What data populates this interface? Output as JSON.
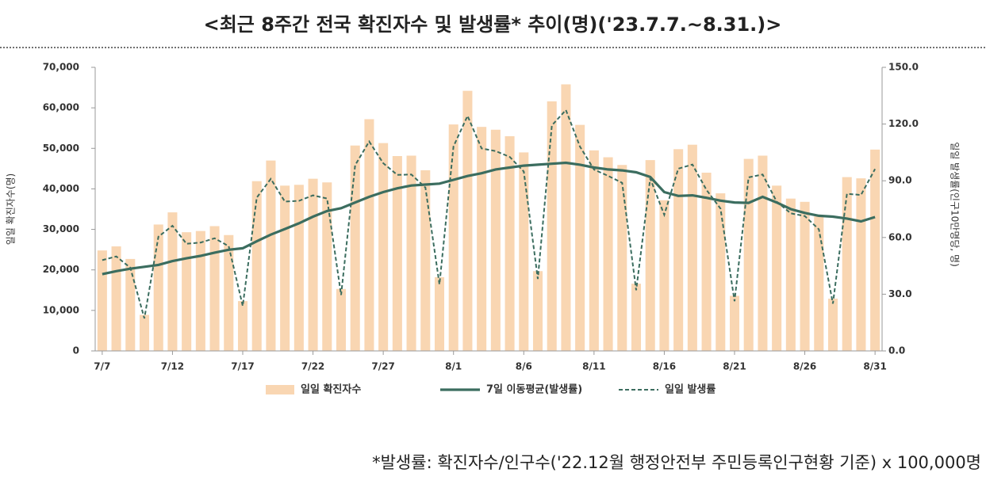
{
  "chart_data": {
    "type": "bar",
    "title": "<최근 8주간 전국 확진자수 및 발생률* 추이(명)('23.7.7.~8.31.)>",
    "footnote": "*발생률: 확진자수/인구수('22.12월 행정안전부 주민등록인구현황 기준) x 100,000명",
    "y_label": "일일 확진자수(명)",
    "y2_label": "일일 발생률(인구10만명당, 명)",
    "categories": [
      "7/7",
      null,
      null,
      null,
      null,
      "7/12",
      null,
      null,
      null,
      null,
      "7/17",
      null,
      null,
      null,
      null,
      "7/22",
      null,
      null,
      null,
      null,
      "7/27",
      null,
      null,
      null,
      null,
      "8/1",
      null,
      null,
      null,
      null,
      "8/6",
      null,
      null,
      null,
      null,
      "8/11",
      null,
      null,
      null,
      null,
      "8/16",
      null,
      null,
      null,
      null,
      "8/21",
      null,
      null,
      null,
      null,
      "8/26",
      null,
      null,
      null,
      null,
      "8/31"
    ],
    "ylim": [
      0,
      70000
    ],
    "yticks": [
      0,
      {
        "value": 10000,
        "label": "10,000"
      },
      {
        "value": 20000,
        "label": "20,000"
      },
      {
        "value": 30000,
        "label": "30,000"
      },
      {
        "value": 40000,
        "label": "40,000"
      },
      {
        "value": 50000,
        "label": "50,000"
      },
      {
        "value": 60000,
        "label": "60,000"
      },
      {
        "value": 70000,
        "label": "70,000"
      }
    ],
    "y2lim": [
      0,
      150
    ],
    "y2ticks": [
      {
        "value": 0,
        "label": "0.0"
      },
      {
        "value": 30,
        "label": "30.0"
      },
      {
        "value": 60,
        "label": "60.0"
      },
      {
        "value": 90,
        "label": "90.0"
      },
      {
        "value": 120,
        "label": "120.0"
      },
      {
        "value": 150,
        "label": "150.0"
      }
    ],
    "series": [
      {
        "name": "일일 확진자수",
        "type": "bar",
        "color": "#f9d6b2",
        "values": [
          24800,
          25800,
          22700,
          8900,
          31200,
          34200,
          29300,
          29600,
          30800,
          28600,
          12300,
          41900,
          47000,
          40800,
          41000,
          42500,
          41600,
          15300,
          50700,
          57200,
          51300,
          48100,
          48200,
          44600,
          18200,
          55900,
          64200,
          55300,
          54600,
          53000,
          49000,
          19700,
          61600,
          65800,
          55800,
          49500,
          47800,
          45900,
          16600,
          47100,
          37200,
          49800,
          50900,
          44000,
          38900,
          13600,
          47400,
          48200,
          40800,
          37600,
          36800,
          33200,
          12900,
          42900,
          42600,
          49700
        ]
      },
      {
        "name": "7일 이동평균(발생률)",
        "type": "line",
        "axis": "y2",
        "line_style": "solid",
        "color": "#3b6d5f",
        "values": [
          40.6,
          42.2,
          43.5,
          44.5,
          45.5,
          47.5,
          49,
          50.3,
          52,
          53.5,
          54.3,
          58,
          61.5,
          64.5,
          67.5,
          71,
          74,
          75.5,
          78.5,
          81.5,
          84,
          86,
          87.5,
          88,
          88.5,
          90.5,
          92.5,
          94,
          96,
          97,
          98,
          98.5,
          99,
          99.5,
          98.5,
          97,
          96,
          95.5,
          94.5,
          92,
          84,
          82,
          82.3,
          81,
          79.5,
          78.5,
          78.3,
          81.5,
          78.5,
          75,
          73,
          71.5,
          71,
          70,
          68.5,
          70.8
        ]
      },
      {
        "name": "일일 발생률",
        "type": "line",
        "axis": "y2",
        "line_style": "dashed",
        "color": "#3b6d5f",
        "values": [
          48.0,
          50.0,
          44.0,
          17.2,
          60.4,
          66.2,
          56.7,
          57.3,
          59.6,
          55.4,
          23.8,
          81.1,
          91.0,
          79.0,
          79.4,
          82.3,
          80.6,
          29.6,
          98.2,
          110.8,
          99.3,
          93.1,
          93.3,
          86.4,
          35.2,
          108.2,
          124.3,
          107.1,
          105.7,
          102.6,
          94.9,
          38.1,
          119.3,
          127.4,
          108.1,
          95.9,
          92.6,
          88.9,
          32.1,
          91.2,
          72.0,
          96.4,
          98.6,
          85.2,
          75.3,
          26.3,
          91.8,
          93.3,
          79.0,
          72.8,
          71.3,
          64.3,
          25.0,
          83.1,
          82.5,
          96.2
        ]
      }
    ]
  }
}
